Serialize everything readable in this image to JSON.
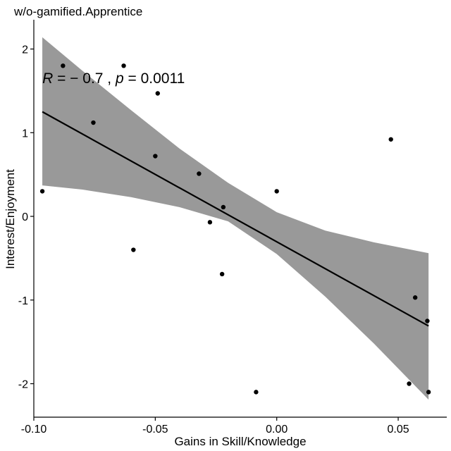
{
  "chart_data": {
    "type": "scatter",
    "title": "w/o-gamified.Apprentice",
    "xlabel": "Gains in Skill/Knowledge",
    "ylabel": "Interest/Enjoyment",
    "xlim": [
      -0.1,
      0.07
    ],
    "ylim": [
      -2.4,
      2.35
    ],
    "x_ticks": [
      -0.1,
      -0.05,
      0.0,
      0.05
    ],
    "x_tick_labels": [
      "-0.10",
      "-0.05",
      "0.00",
      "0.05"
    ],
    "y_ticks": [
      -2,
      -1,
      0,
      1,
      2
    ],
    "y_tick_labels": [
      "-2",
      "-1",
      "0",
      "1",
      "2"
    ],
    "grid": false,
    "points": [
      {
        "x": -0.0965,
        "y": 0.3
      },
      {
        "x": -0.088,
        "y": 1.8
      },
      {
        "x": -0.0755,
        "y": 1.12
      },
      {
        "x": -0.063,
        "y": 1.8
      },
      {
        "x": -0.059,
        "y": -0.4
      },
      {
        "x": -0.05,
        "y": 0.72
      },
      {
        "x": -0.049,
        "y": 1.47
      },
      {
        "x": -0.032,
        "y": 0.51
      },
      {
        "x": -0.0275,
        "y": -0.07
      },
      {
        "x": -0.0225,
        "y": -0.69
      },
      {
        "x": -0.022,
        "y": 0.11
      },
      {
        "x": -0.0085,
        "y": -2.1
      },
      {
        "x": 0.0,
        "y": 0.3
      },
      {
        "x": 0.047,
        "y": 0.92
      },
      {
        "x": 0.0545,
        "y": -2.0
      },
      {
        "x": 0.057,
        "y": -0.97
      },
      {
        "x": 0.062,
        "y": -1.25
      },
      {
        "x": 0.0625,
        "y": -2.1
      }
    ],
    "regression": {
      "x": [
        -0.0965,
        0.0625
      ],
      "y": [
        1.25,
        -1.31
      ]
    },
    "confidence_band": {
      "x": [
        -0.0965,
        -0.08,
        -0.06,
        -0.04,
        -0.02,
        0.0,
        0.02,
        0.04,
        0.0625
      ],
      "upper": [
        2.14,
        1.74,
        1.27,
        0.81,
        0.4,
        0.05,
        -0.17,
        -0.31,
        -0.44
      ],
      "lower": [
        0.37,
        0.32,
        0.23,
        0.11,
        -0.06,
        -0.45,
        -0.96,
        -1.52,
        -2.19
      ]
    },
    "annotation": {
      "parts": [
        {
          "text": "R",
          "italic": true
        },
        {
          "text": " = − 0.7 , ",
          "italic": false
        },
        {
          "text": "p",
          "italic": true
        },
        {
          "text": " = 0.0011",
          "italic": false
        }
      ],
      "x": -0.0965,
      "y": 1.65
    },
    "colors": {
      "band": "#999999",
      "line": "#000000",
      "point": "#000000",
      "axis": "#000000"
    }
  }
}
